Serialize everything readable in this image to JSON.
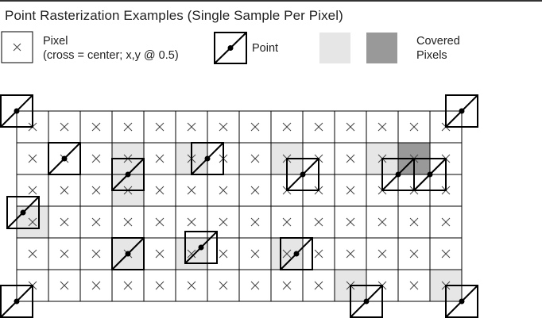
{
  "title": "Point Rasterization Examples (Single Sample Per Pixel)",
  "legend": {
    "pixel_label": "Pixel",
    "pixel_sublabel": "(cross = center; x,y @ 0.5)",
    "point_label": "Point",
    "covered_line1": "Covered",
    "covered_line2": "Pixels"
  },
  "colors": {
    "covered_light": "#e6e6e6",
    "covered_dark": "#999999",
    "grid_line": "#000000",
    "cross": "#444444"
  },
  "grid": {
    "columns": 14,
    "rows": 6
  },
  "covered_pixels_light": [
    [
      3,
      1
    ],
    [
      5,
      1
    ],
    [
      8,
      1
    ],
    [
      11,
      1
    ],
    [
      3,
      2
    ],
    [
      0,
      3
    ],
    [
      3,
      4
    ],
    [
      5,
      4
    ],
    [
      8,
      4
    ],
    [
      10,
      5
    ],
    [
      13,
      5
    ]
  ],
  "covered_pixels_dark": [
    [
      12,
      1
    ]
  ],
  "points": [
    [
      0,
      0
    ],
    [
      14,
      0
    ],
    [
      1.5,
      1.5
    ],
    [
      6,
      1.5
    ],
    [
      3.5,
      2
    ],
    [
      9,
      2
    ],
    [
      12,
      2
    ],
    [
      13,
      2
    ],
    [
      0.2,
      3.2
    ],
    [
      3.5,
      4.5
    ],
    [
      5.8,
      4.3
    ],
    [
      8.8,
      4.5
    ],
    [
      0,
      6
    ],
    [
      11,
      6
    ],
    [
      14,
      6
    ]
  ]
}
